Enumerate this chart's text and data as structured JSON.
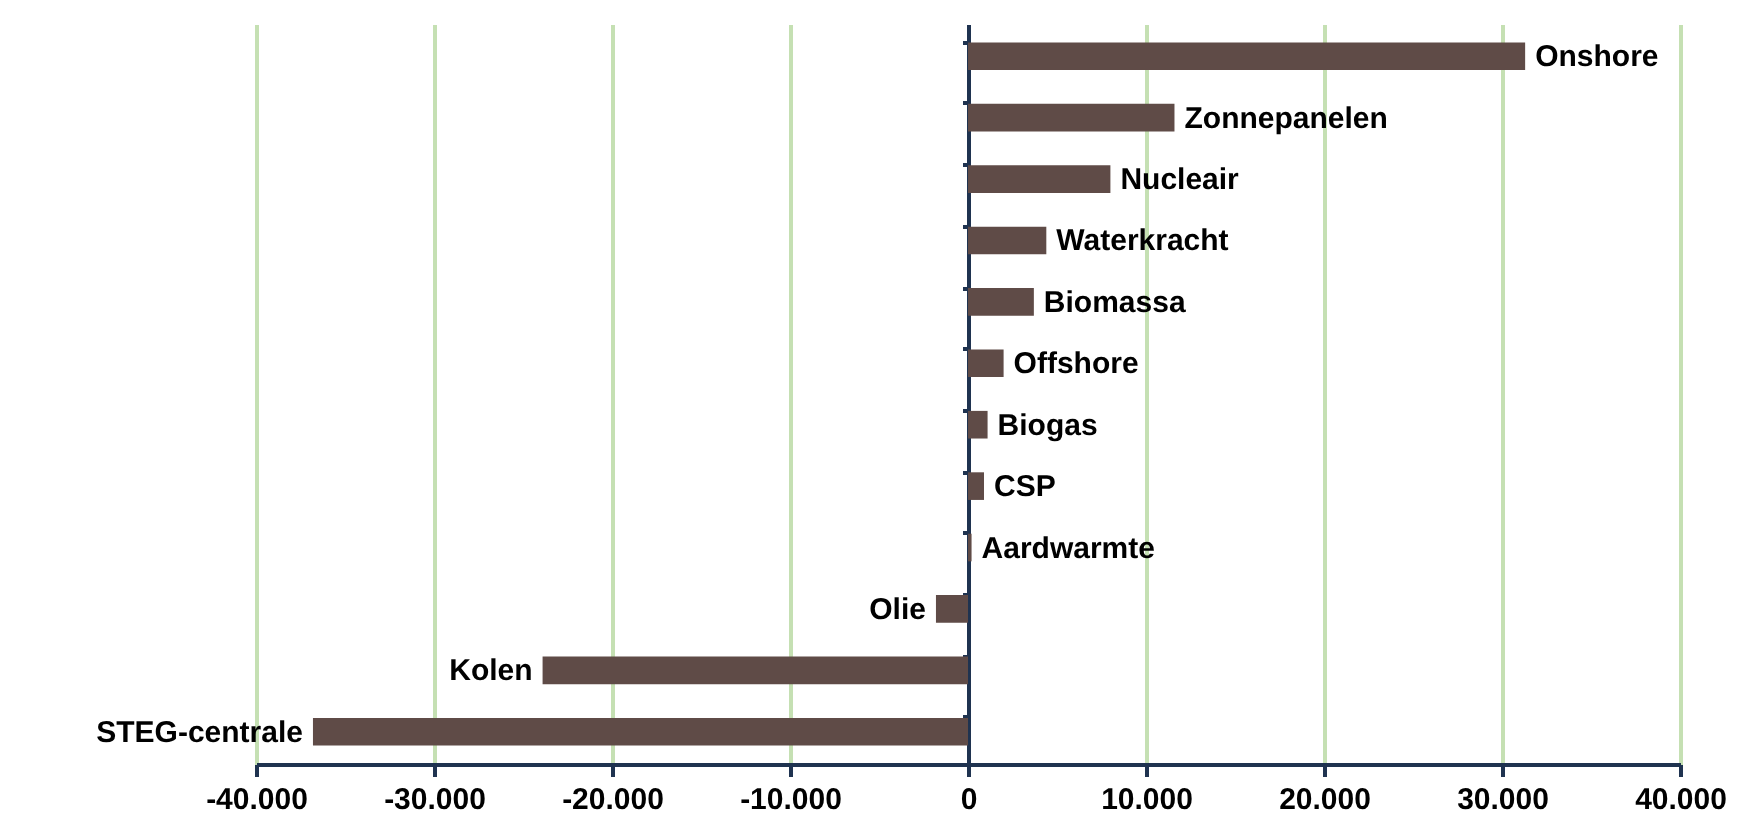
{
  "chart_data": {
    "type": "bar",
    "orientation": "horizontal",
    "categories": [
      "Onshore",
      "Zonnepanelen",
      "Nucleair",
      "Waterkracht",
      "Biomassa",
      "Offshore",
      "Biogas",
      "CSP",
      "Aardwarmte",
      "Olie",
      "Kolen",
      "STEG-centrale"
    ],
    "values": [
      31300,
      11600,
      8000,
      4400,
      3700,
      2000,
      1100,
      900,
      200,
      -1800,
      -23900,
      -36800
    ],
    "color": "#5f4b47",
    "xlim": [
      -40000,
      40000
    ],
    "xticks": [
      {
        "value": -40000,
        "label": "-40.000"
      },
      {
        "value": -30000,
        "label": "-30.000"
      },
      {
        "value": -20000,
        "label": "-20.000"
      },
      {
        "value": -10000,
        "label": "-10.000"
      },
      0,
      {
        "value": 10000,
        "label": "10.000"
      },
      {
        "value": 20000,
        "label": "20.000"
      },
      {
        "value": 30000,
        "label": "30.000"
      },
      {
        "value": 40000,
        "label": "40.000"
      }
    ],
    "grid": "x",
    "tick_labels": "x"
  }
}
